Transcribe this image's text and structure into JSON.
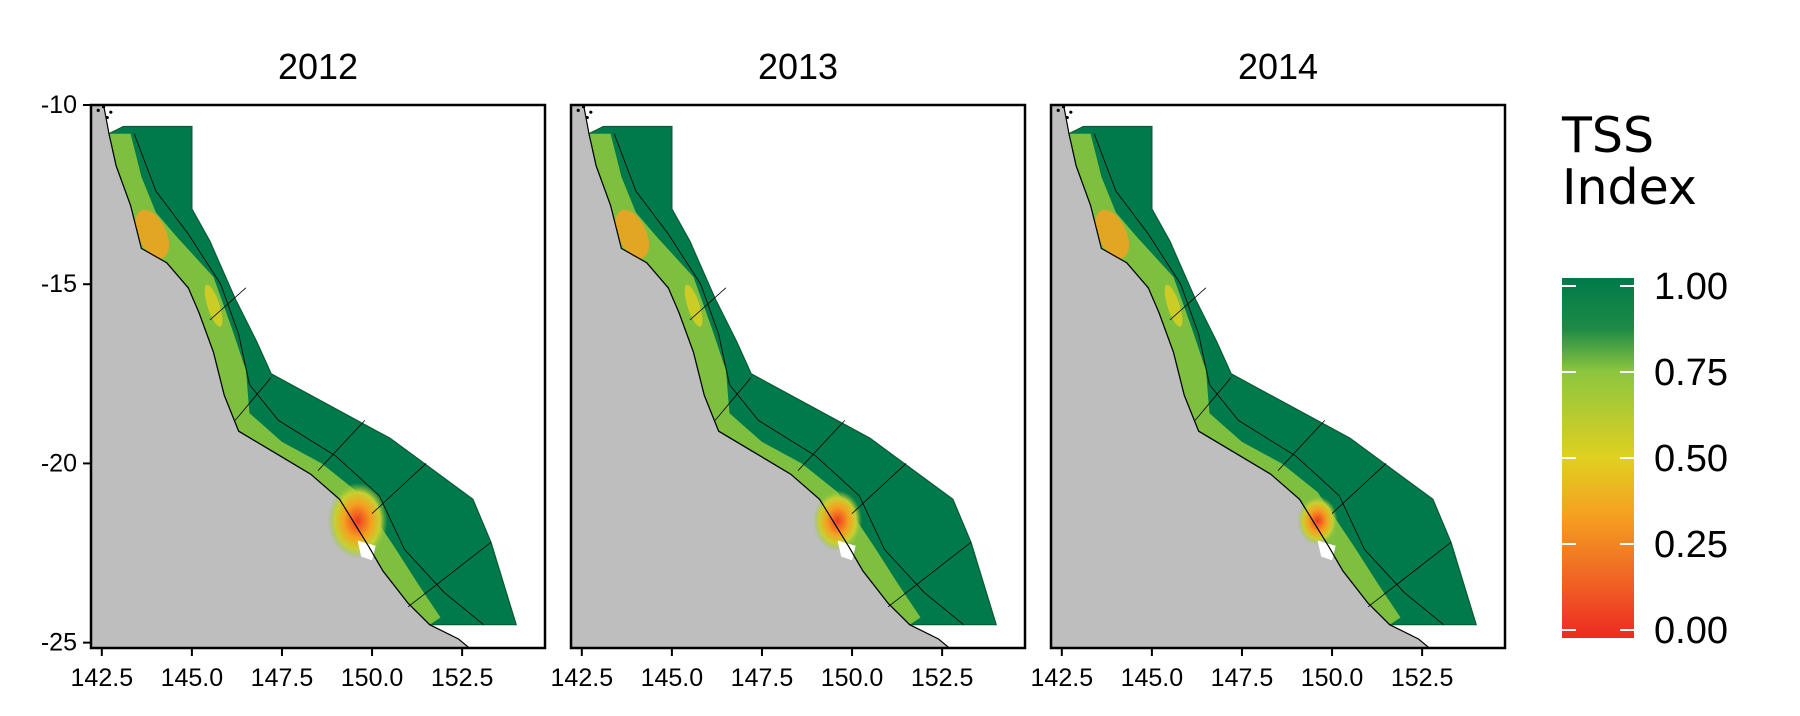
{
  "panels": [
    {
      "title": "2012"
    },
    {
      "title": "2013"
    },
    {
      "title": "2014"
    }
  ],
  "axes": {
    "x_ticks": [
      "142.5",
      "145.0",
      "147.5",
      "150.0",
      "152.5"
    ],
    "x_tick_values": [
      142.5,
      145.0,
      147.5,
      150.0,
      152.5
    ],
    "y_ticks": [
      "-10",
      "-15",
      "-20",
      "-25"
    ],
    "y_tick_values": [
      -10,
      -15,
      -20,
      -25
    ],
    "xlim": [
      142.2,
      154.8
    ],
    "ylim": [
      -25.15,
      -10.0
    ]
  },
  "legend": {
    "title_line1": "TSS",
    "title_line2": "Index",
    "labels": [
      "1.00",
      "0.75",
      "0.50",
      "0.25",
      "0.00"
    ],
    "values": [
      1.0,
      0.75,
      0.5,
      0.25,
      0.0
    ]
  },
  "colors": {
    "land": "#bebebe",
    "high": "#007a4a",
    "mid_high": "#8cc63f",
    "mid": "#e0d020",
    "mid_low": "#f5a020",
    "low": "#ee2a22"
  }
}
